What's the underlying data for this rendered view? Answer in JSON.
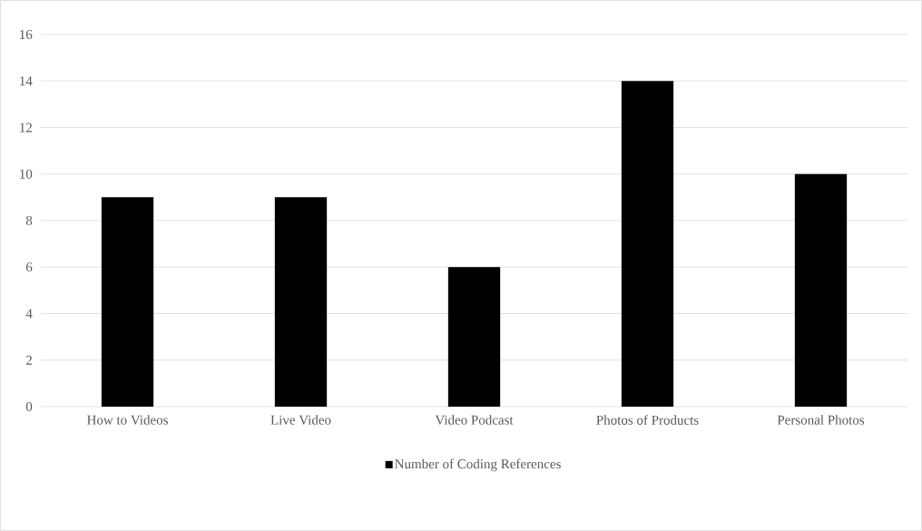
{
  "chart_data": {
    "type": "bar",
    "categories": [
      "How to Videos",
      "Live Video",
      "Video Podcast",
      "Photos of Products",
      "Personal Photos"
    ],
    "series": [
      {
        "name": "Number of Coding References",
        "color": "#000000",
        "values": [
          9,
          9,
          6,
          14,
          10
        ]
      }
    ],
    "ylim": [
      0,
      16
    ],
    "yticks": [
      0,
      2,
      4,
      6,
      8,
      10,
      12,
      14,
      16
    ],
    "grid": "y",
    "legend": "bottom"
  }
}
